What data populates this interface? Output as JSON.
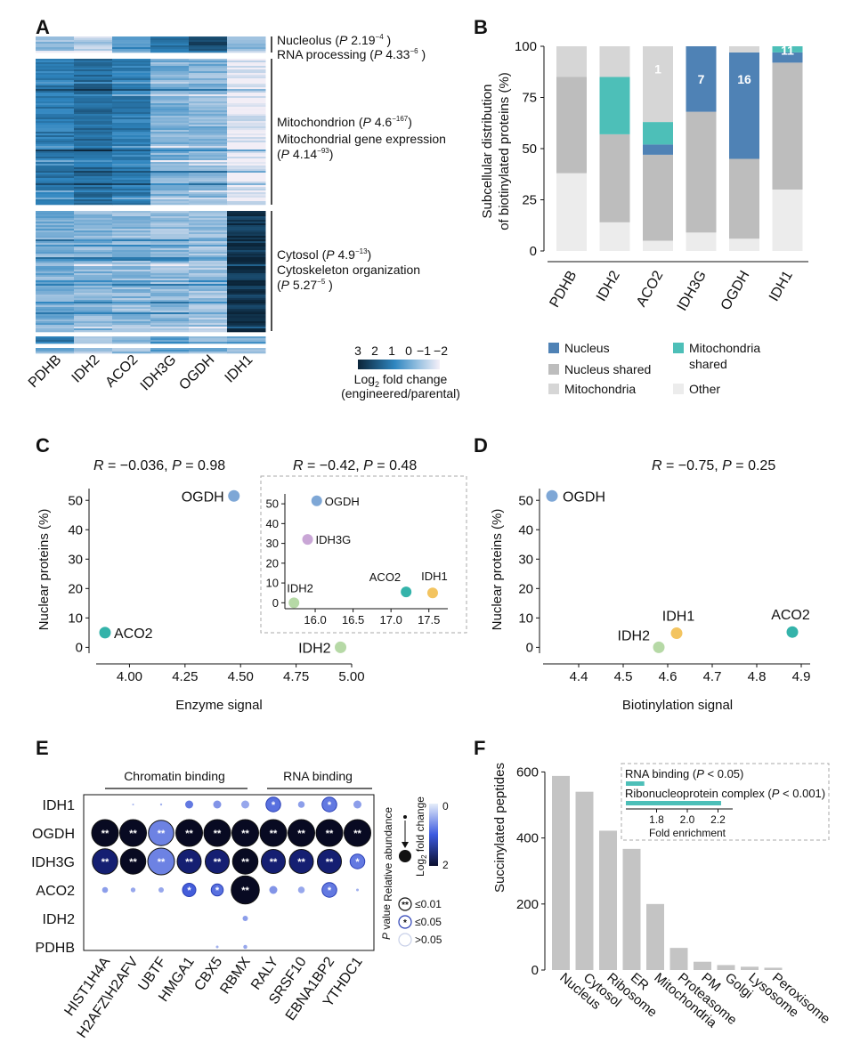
{
  "panels": {
    "a": "A",
    "b": "B",
    "c": "C",
    "d": "D",
    "e": "E",
    "f": "F"
  },
  "heatmap": {
    "columns": [
      "PDHB",
      "IDH2",
      "ACO2",
      "IDH3G",
      "OGDH",
      "IDH1"
    ],
    "cluster1": {
      "line1_name": "Nucleolus",
      "line1_p": "P",
      "line1_val": "2.19",
      "line1_exp": "−4",
      "line1_end": ")",
      "line2_name": "RNA processing",
      "line2_p": "P",
      "line2_val": "4.33",
      "line2_exp": "−6",
      "line2_end": ")"
    },
    "cluster2": {
      "line1_name": "Mitochondrion",
      "line1_p": "P",
      "line1_val": "4.6",
      "line1_exp": "−167",
      "line1_end": ")",
      "line2_name": "Mitochondrial gene expression",
      "line3_p": "P",
      "line3_val": "4.14",
      "line3_exp": "−93",
      "line3_end": ")"
    },
    "cluster3": {
      "line1_name": "Cytosol",
      "line1_p": "P",
      "line1_val": "4.9",
      "line1_exp": "−13",
      "line1_end": ")",
      "line2_name": "Cytoskeleton organization",
      "line3_p": "P",
      "line3_val": "5.27",
      "line3_exp": "−5",
      "line3_end": ")"
    },
    "legend": {
      "ticks": [
        "3",
        "2",
        "1",
        "0",
        "−1",
        "−2"
      ],
      "title_a": "Log",
      "title_sub": "2",
      "title_b": " fold change",
      "title_line2": "(engineered/parental)"
    },
    "colors": {
      "high": "#0b2438",
      "mid": "#2f86c0",
      "low": "#f2eef6"
    }
  },
  "chart_data": [
    {
      "id": "B",
      "type": "bar",
      "stacked": true,
      "ylabel_line1": "Subcellular distribution",
      "ylabel_line2": "of biotinylated proteins (%)",
      "ylim": [
        0,
        100
      ],
      "yticks": [
        "0",
        "25",
        "50",
        "75",
        "100"
      ],
      "categories": [
        "PDHB",
        "IDH2",
        "ACO2",
        "IDH3G",
        "OGDH",
        "IDH1"
      ],
      "series": [
        {
          "name": "Other",
          "color": "#ececec",
          "values": [
            38,
            14,
            5,
            9,
            6,
            30
          ]
        },
        {
          "name": "Nucleus shared",
          "color": "#bdbdbd",
          "values": [
            47,
            43,
            42,
            59,
            39,
            62
          ]
        },
        {
          "name": "Nucleus",
          "color": "#4f82b5",
          "values": [
            0,
            0,
            5,
            32,
            52,
            5
          ]
        },
        {
          "name": "Mitochondria shared",
          "color": "#4dbfb8",
          "values": [
            0,
            28,
            11,
            0,
            0,
            3
          ]
        },
        {
          "name": "Mitochondria",
          "color": "#d6d6d6",
          "values": [
            15,
            15,
            37,
            0,
            3,
            0
          ]
        }
      ],
      "bar_labels": [
        "",
        "",
        "1",
        "7",
        "16",
        "11"
      ],
      "legend": [
        {
          "label": "Nucleus",
          "color": "#4f82b5"
        },
        {
          "label": "Mitochondria",
          "label2": "shared",
          "color": "#4dbfb8"
        },
        {
          "label": "Nucleus shared",
          "color": "#bdbdbd"
        },
        {
          "label": "Mitochondria",
          "color": "#d6d6d6"
        },
        {
          "label": "Other",
          "color": "#ececec"
        }
      ]
    },
    {
      "id": "C",
      "type": "scatter",
      "xlabel": "Enzyme signal",
      "ylabel": "Nuclear proteins (%)",
      "xlim": [
        3.85,
        5.0
      ],
      "ylim": [
        -2,
        54
      ],
      "xticks": [
        "4.00",
        "4.25",
        "4.50",
        "4.75",
        "5.00"
      ],
      "yticks": [
        "0",
        "10",
        "20",
        "30",
        "40",
        "50"
      ],
      "stat": {
        "r": "R",
        "rval": " = −0.036, ",
        "p": "P",
        "pval": " = 0.98"
      },
      "points": [
        {
          "label": "OGDH",
          "x": 4.47,
          "y": 51.5,
          "color": "#7ea7d6"
        },
        {
          "label": "ACO2",
          "x": 3.89,
          "y": 5,
          "color": "#34b3aa"
        },
        {
          "label": "IDH2",
          "x": 4.95,
          "y": 0,
          "color": "#b6d9a6"
        }
      ],
      "inset": {
        "xlim": [
          15.6,
          17.75
        ],
        "ylim": [
          -3,
          55
        ],
        "xticks": [
          "16.0",
          "16.5",
          "17.0",
          "17.5"
        ],
        "yticks": [
          "0",
          "10",
          "20",
          "30",
          "40",
          "50"
        ],
        "stat": {
          "r": "R",
          "rval": " = −0.42, ",
          "p": "P",
          "pval": " = 0.48"
        },
        "points": [
          {
            "label": "OGDH",
            "x": 16.02,
            "y": 51.5,
            "color": "#7ea7d6"
          },
          {
            "label": "IDH3G",
            "x": 15.9,
            "y": 32,
            "color": "#c9a6d6"
          },
          {
            "label": "ACO2",
            "x": 17.2,
            "y": 5.5,
            "color": "#34b3aa"
          },
          {
            "label": "IDH1",
            "x": 17.55,
            "y": 5,
            "color": "#f3c460"
          },
          {
            "label": "IDH2",
            "x": 15.72,
            "y": 0,
            "color": "#b6d9a6"
          }
        ]
      }
    },
    {
      "id": "D",
      "type": "scatter",
      "xlabel": "Biotinylation signal",
      "ylabel": "Nuclear proteins (%)",
      "xlim": [
        4.32,
        4.92
      ],
      "ylim": [
        -2,
        54
      ],
      "xticks": [
        "4.4",
        "4.5",
        "4.6",
        "4.7",
        "4.8",
        "4.9"
      ],
      "yticks": [
        "0",
        "10",
        "20",
        "30",
        "40",
        "50"
      ],
      "stat": {
        "r": "R",
        "rval": " = −0.75, ",
        "p": "P",
        "pval": " = 0.25"
      },
      "points": [
        {
          "label": "OGDH",
          "x": 4.34,
          "y": 51.5,
          "color": "#7ea7d6"
        },
        {
          "label": "IDH1",
          "x": 4.62,
          "y": 4.8,
          "color": "#f3c460"
        },
        {
          "label": "IDH2",
          "x": 4.58,
          "y": 0,
          "color": "#b6d9a6"
        },
        {
          "label": "ACO2",
          "x": 4.88,
          "y": 5.2,
          "color": "#34b3aa"
        }
      ]
    },
    {
      "id": "E",
      "type": "heatmap",
      "rows": [
        "IDH1",
        "OGDH",
        "IDH3G",
        "ACO2",
        "IDH2",
        "PDHB"
      ],
      "columns": [
        "HIST1H4A",
        "H2AFZ\\H2AFV",
        "UBTF",
        "HMGA1",
        "CBX5",
        "RBMX",
        "RALY",
        "SRSF10",
        "EBNA1BP2",
        "YTHDC1"
      ],
      "group_labels": [
        "Chromatin binding",
        "RNA binding"
      ],
      "size": [
        [
          0,
          0.05,
          0.08,
          0.3,
          0.3,
          0.3,
          0.55,
          0.25,
          0.55,
          0.3
        ],
        [
          1,
          1,
          0.95,
          1,
          1,
          1,
          1,
          1,
          1,
          1
        ],
        [
          0.95,
          0.95,
          1,
          0.9,
          0.9,
          0.95,
          0.9,
          0.9,
          0.9,
          0.55
        ],
        [
          0.22,
          0.18,
          0.2,
          0.5,
          0.45,
          1.05,
          0.3,
          0.25,
          0.55,
          0.1
        ],
        [
          0,
          0,
          0,
          0,
          0,
          0.2,
          0,
          0,
          0,
          0
        ],
        [
          0,
          0,
          0,
          0,
          0.1,
          0.15,
          0,
          0,
          0,
          0
        ]
      ],
      "shade": [
        [
          0,
          0.3,
          0.3,
          0.6,
          0.45,
          0.35,
          0.65,
          0.4,
          0.6,
          0.4
        ],
        [
          1,
          1,
          0.55,
          1,
          1,
          1,
          1,
          1,
          1,
          1
        ],
        [
          0.9,
          1,
          0.55,
          0.9,
          0.9,
          1,
          0.9,
          0.9,
          0.9,
          0.6
        ],
        [
          0.4,
          0.35,
          0.35,
          0.75,
          0.65,
          1,
          0.45,
          0.35,
          0.6,
          0.3
        ],
        [
          0,
          0,
          0,
          0,
          0,
          0.4,
          0,
          0,
          0,
          0
        ],
        [
          0,
          0,
          0,
          0,
          0.3,
          0.35,
          0,
          0,
          0,
          0
        ]
      ],
      "sig": [
        [
          "",
          "",
          "",
          "",
          "",
          "",
          "*",
          "",
          "*",
          ""
        ],
        [
          "**",
          "**",
          "**",
          "**",
          "**",
          "**",
          "**",
          "**",
          "**",
          "**"
        ],
        [
          "**",
          "**",
          "**",
          "**",
          "**",
          "**",
          "**",
          "**",
          "**",
          "*"
        ],
        [
          "",
          "",
          "",
          "*",
          "*",
          "**",
          "",
          "",
          "*",
          ""
        ],
        [
          "",
          "",
          "",
          "",
          "",
          "",
          "",
          "",
          "",
          ""
        ],
        [
          "",
          "",
          "",
          "",
          "",
          "",
          "",
          "",
          "",
          ""
        ]
      ],
      "legend": {
        "rel_abundance": "Relative abundance",
        "fc_a": "Log",
        "fc_sub": "2",
        "fc_b": " fold change",
        "fc_ticks": [
          "0",
          "2"
        ],
        "pvalue_p": "P",
        "pvalue_rest": " value",
        "pvalue_items": [
          {
            "sym": "**",
            "label": "≤0.01"
          },
          {
            "sym": "*",
            "label": "≤0.05"
          },
          {
            "sym": "",
            "label": ">0.05"
          }
        ]
      }
    },
    {
      "id": "F",
      "type": "bar",
      "ylabel": "Succinylated peptides",
      "ylim": [
        0,
        620
      ],
      "yticks": [
        "0",
        "200",
        "400",
        "600"
      ],
      "categories": [
        "Nucleus",
        "Cytosol",
        "Ribosome",
        "ER",
        "Mitochondria",
        "Proteasome",
        "PM",
        "Golgi",
        "Lysosome",
        "Peroxisome"
      ],
      "values": [
        588,
        540,
        422,
        367,
        200,
        67,
        25,
        15,
        10,
        7
      ],
      "color": "#c4c4c4",
      "inset": {
        "xlabel": "Fold enrichment",
        "xlim": [
          1.6,
          2.4
        ],
        "xticks": [
          "1.8",
          "2.0",
          "2.2"
        ],
        "bars": [
          {
            "name": "RNA binding",
            "p_open": " (",
            "p": "P",
            "p_rest": " < 0.05)",
            "value": 1.72,
            "color": "#4dbfb8"
          },
          {
            "name": "Ribonucleoprotein complex",
            "p_open": " (",
            "p": "P",
            "p_rest": " < 0.001)",
            "value": 2.22,
            "color": "#4dbfb8"
          }
        ]
      }
    }
  ]
}
